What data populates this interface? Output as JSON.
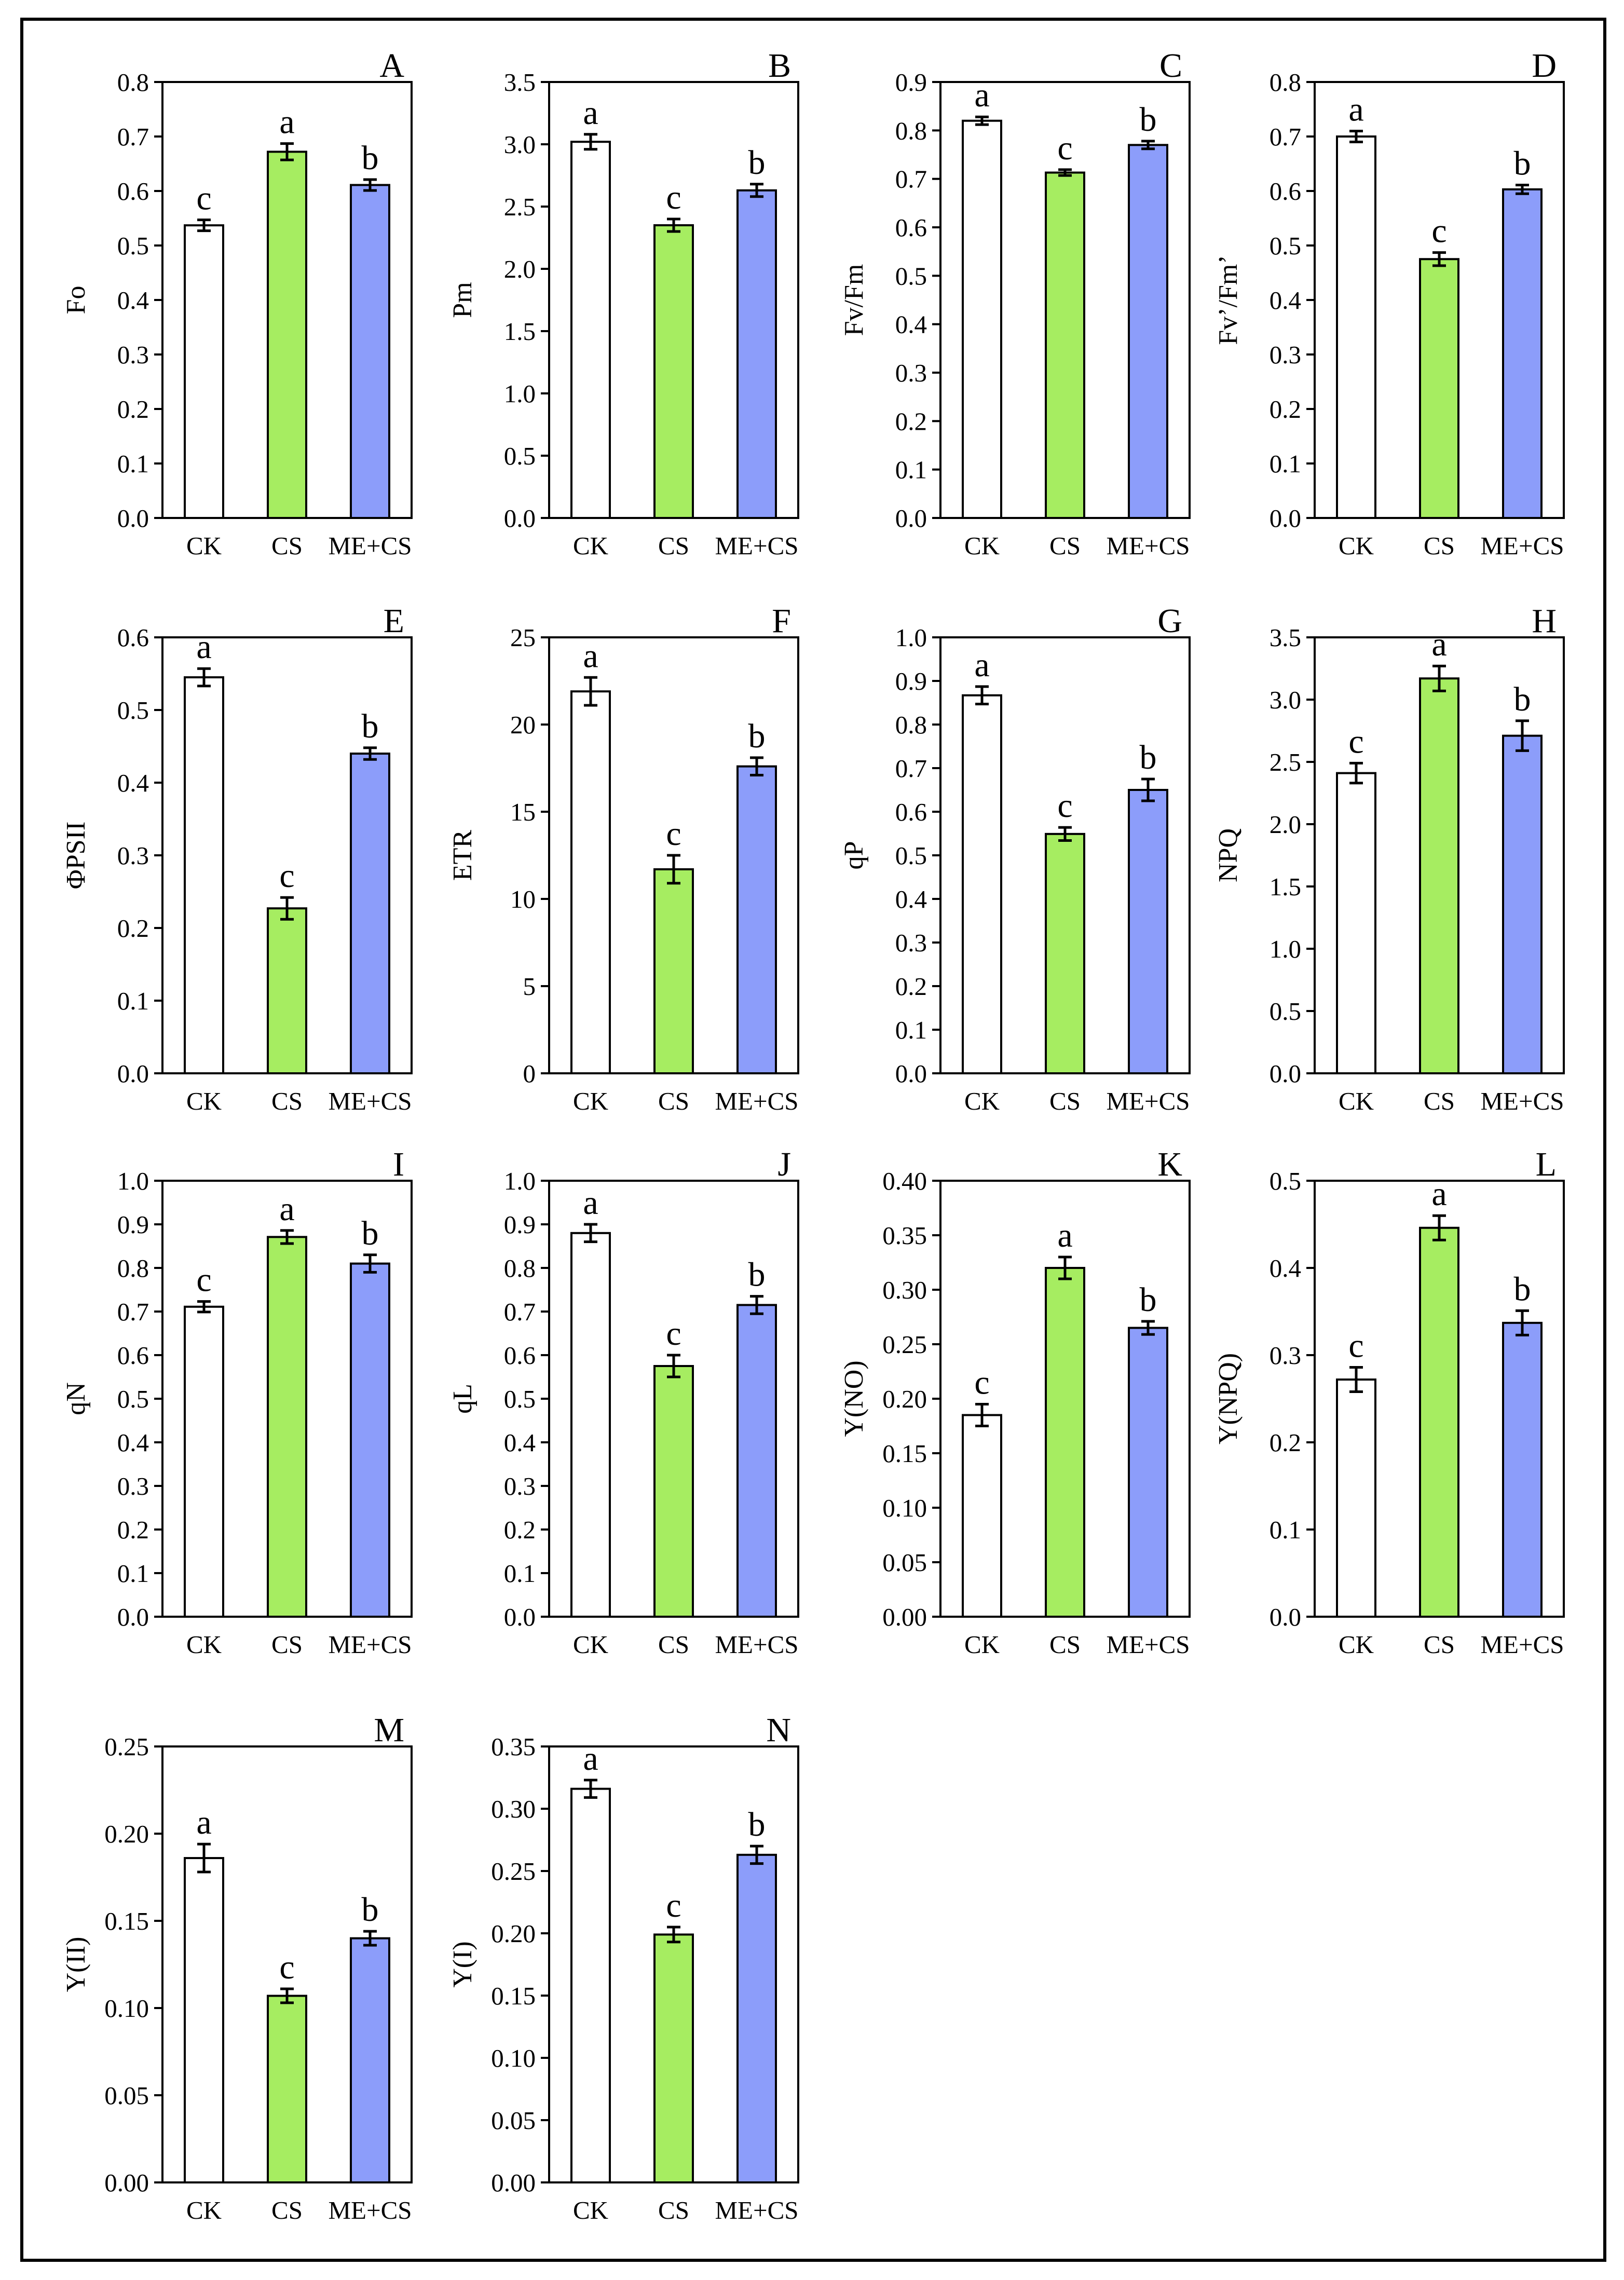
{
  "figure": {
    "groups": [
      "CK",
      "CS",
      "ME+CS"
    ],
    "colors": {
      "CK": "#ffffff",
      "CS": "#a6ed61",
      "ME+CS": "#8c9dfa",
      "stroke": "#000000"
    }
  },
  "chart_data": [
    {
      "type": "bar",
      "panel": "A",
      "ylabel": "Fo",
      "ylim": [
        0,
        0.8
      ],
      "yticks": [
        0.0,
        0.1,
        0.2,
        0.3,
        0.4,
        0.5,
        0.6,
        0.7,
        0.8
      ],
      "decimals": 1,
      "categories": [
        "CK",
        "CS",
        "ME+CS"
      ],
      "values": [
        0.537,
        0.672,
        0.611
      ],
      "errors": [
        0.01,
        0.015,
        0.01
      ],
      "letters": [
        "c",
        "a",
        "b"
      ]
    },
    {
      "type": "bar",
      "panel": "B",
      "ylabel": "Pm",
      "ylim": [
        0,
        3.5
      ],
      "yticks": [
        0.0,
        0.5,
        1.0,
        1.5,
        2.0,
        2.5,
        3.0,
        3.5
      ],
      "decimals": 1,
      "categories": [
        "CK",
        "CS",
        "ME+CS"
      ],
      "values": [
        3.02,
        2.35,
        2.63
      ],
      "errors": [
        0.06,
        0.05,
        0.05
      ],
      "letters": [
        "a",
        "c",
        "b"
      ]
    },
    {
      "type": "bar",
      "panel": "C",
      "ylabel": "Fv/Fm",
      "ylim": [
        0,
        0.9
      ],
      "yticks": [
        0.0,
        0.1,
        0.2,
        0.3,
        0.4,
        0.5,
        0.6,
        0.7,
        0.8,
        0.9
      ],
      "decimals": 1,
      "categories": [
        "CK",
        "CS",
        "ME+CS"
      ],
      "values": [
        0.82,
        0.713,
        0.77
      ],
      "errors": [
        0.008,
        0.006,
        0.008
      ],
      "letters": [
        "a",
        "c",
        "b"
      ]
    },
    {
      "type": "bar",
      "panel": "D",
      "ylabel": "Fv’/Fm’",
      "ylim": [
        0,
        0.8
      ],
      "yticks": [
        0.0,
        0.1,
        0.2,
        0.3,
        0.4,
        0.5,
        0.6,
        0.7,
        0.8
      ],
      "decimals": 1,
      "categories": [
        "CK",
        "CS",
        "ME+CS"
      ],
      "values": [
        0.7,
        0.475,
        0.603
      ],
      "errors": [
        0.01,
        0.012,
        0.008
      ],
      "letters": [
        "a",
        "c",
        "b"
      ]
    },
    {
      "type": "bar",
      "panel": "E",
      "ylabel": "ΦPSII",
      "ylim": [
        0,
        0.6
      ],
      "yticks": [
        0.0,
        0.1,
        0.2,
        0.3,
        0.4,
        0.5,
        0.6
      ],
      "decimals": 1,
      "categories": [
        "CK",
        "CS",
        "ME+CS"
      ],
      "values": [
        0.545,
        0.227,
        0.44
      ],
      "errors": [
        0.012,
        0.015,
        0.008
      ],
      "letters": [
        "a",
        "c",
        "b"
      ]
    },
    {
      "type": "bar",
      "panel": "F",
      "ylabel": "ETR",
      "ylim": [
        0,
        25
      ],
      "yticks": [
        0,
        5,
        10,
        15,
        20,
        25
      ],
      "decimals": 0,
      "categories": [
        "CK",
        "CS",
        "ME+CS"
      ],
      "values": [
        21.9,
        11.7,
        17.6
      ],
      "errors": [
        0.8,
        0.8,
        0.5
      ],
      "letters": [
        "a",
        "c",
        "b"
      ]
    },
    {
      "type": "bar",
      "panel": "G",
      "ylabel": "qP",
      "ylim": [
        0,
        1.0
      ],
      "yticks": [
        0.0,
        0.1,
        0.2,
        0.3,
        0.4,
        0.5,
        0.6,
        0.7,
        0.8,
        0.9,
        1.0
      ],
      "decimals": 1,
      "categories": [
        "CK",
        "CS",
        "ME+CS"
      ],
      "values": [
        0.867,
        0.549,
        0.65
      ],
      "errors": [
        0.02,
        0.015,
        0.025
      ],
      "letters": [
        "a",
        "c",
        "b"
      ]
    },
    {
      "type": "bar",
      "panel": "H",
      "ylabel": "NPQ",
      "ylim": [
        0,
        3.5
      ],
      "yticks": [
        0.0,
        0.5,
        1.0,
        1.5,
        2.0,
        2.5,
        3.0,
        3.5
      ],
      "decimals": 1,
      "categories": [
        "CK",
        "CS",
        "ME+CS"
      ],
      "values": [
        2.41,
        3.17,
        2.71
      ],
      "errors": [
        0.08,
        0.1,
        0.12
      ],
      "letters": [
        "c",
        "a",
        "b"
      ]
    },
    {
      "type": "bar",
      "panel": "I",
      "ylabel": "qN",
      "ylim": [
        0,
        1.0
      ],
      "yticks": [
        0.0,
        0.1,
        0.2,
        0.3,
        0.4,
        0.5,
        0.6,
        0.7,
        0.8,
        0.9,
        1.0
      ],
      "decimals": 1,
      "categories": [
        "CK",
        "CS",
        "ME+CS"
      ],
      "values": [
        0.711,
        0.871,
        0.81
      ],
      "errors": [
        0.012,
        0.015,
        0.02
      ],
      "letters": [
        "c",
        "a",
        "b"
      ]
    },
    {
      "type": "bar",
      "panel": "J",
      "ylabel": "qL",
      "ylim": [
        0,
        1.0
      ],
      "yticks": [
        0.0,
        0.1,
        0.2,
        0.3,
        0.4,
        0.5,
        0.6,
        0.7,
        0.8,
        0.9,
        1.0
      ],
      "decimals": 1,
      "categories": [
        "CK",
        "CS",
        "ME+CS"
      ],
      "values": [
        0.88,
        0.575,
        0.715
      ],
      "errors": [
        0.02,
        0.025,
        0.02
      ],
      "letters": [
        "a",
        "c",
        "b"
      ]
    },
    {
      "type": "bar",
      "panel": "K",
      "ylabel": "Y(NO)",
      "ylim": [
        0,
        0.4
      ],
      "yticks": [
        0.0,
        0.05,
        0.1,
        0.15,
        0.2,
        0.25,
        0.3,
        0.35,
        0.4
      ],
      "decimals": 2,
      "categories": [
        "CK",
        "CS",
        "ME+CS"
      ],
      "values": [
        0.185,
        0.32,
        0.265
      ],
      "errors": [
        0.01,
        0.01,
        0.006
      ],
      "letters": [
        "c",
        "a",
        "b"
      ]
    },
    {
      "type": "bar",
      "panel": "L",
      "ylabel": "Y(NPQ)",
      "ylim": [
        0,
        0.5
      ],
      "yticks": [
        0.0,
        0.1,
        0.2,
        0.3,
        0.4,
        0.5
      ],
      "decimals": 1,
      "categories": [
        "CK",
        "CS",
        "ME+CS"
      ],
      "values": [
        0.272,
        0.446,
        0.337
      ],
      "errors": [
        0.014,
        0.014,
        0.014
      ],
      "letters": [
        "c",
        "a",
        "b"
      ]
    },
    {
      "type": "bar",
      "panel": "M",
      "ylabel": "Y(II)",
      "ylim": [
        0,
        0.25
      ],
      "yticks": [
        0.0,
        0.05,
        0.1,
        0.15,
        0.2,
        0.25
      ],
      "decimals": 2,
      "categories": [
        "CK",
        "CS",
        "ME+CS"
      ],
      "values": [
        0.186,
        0.107,
        0.14
      ],
      "errors": [
        0.008,
        0.004,
        0.004
      ],
      "letters": [
        "a",
        "c",
        "b"
      ]
    },
    {
      "type": "bar",
      "panel": "N",
      "ylabel": "Y(I)",
      "ylim": [
        0,
        0.35
      ],
      "yticks": [
        0.0,
        0.05,
        0.1,
        0.15,
        0.2,
        0.25,
        0.3,
        0.35
      ],
      "decimals": 2,
      "categories": [
        "CK",
        "CS",
        "ME+CS"
      ],
      "values": [
        0.316,
        0.199,
        0.263
      ],
      "errors": [
        0.007,
        0.006,
        0.007
      ],
      "letters": [
        "a",
        "c",
        "b"
      ]
    }
  ]
}
